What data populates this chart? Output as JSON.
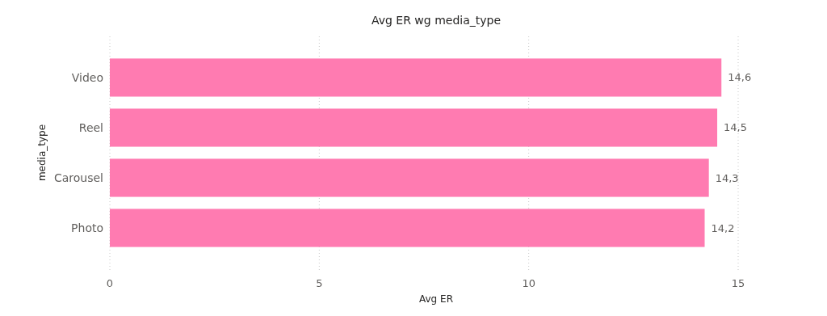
{
  "chart_data": {
    "type": "bar",
    "orientation": "horizontal",
    "title": "Avg ER wg media_type",
    "xlabel": "Avg ER",
    "ylabel": "media_type",
    "categories": [
      "Video",
      "Reel",
      "Carousel",
      "Photo"
    ],
    "values": [
      14.6,
      14.5,
      14.3,
      14.2
    ],
    "color": "#ff7bb1",
    "value_labels": [
      "14,6",
      "14,5",
      "14,3",
      "14,2"
    ],
    "xlim": [
      0,
      15
    ],
    "xticks": [
      0,
      5,
      10,
      15
    ],
    "grid": "x"
  }
}
